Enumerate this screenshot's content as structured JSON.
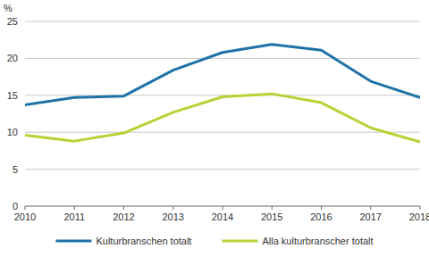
{
  "chart_data": {
    "type": "line",
    "y_label": "%",
    "x": [
      2010,
      2011,
      2012,
      2013,
      2014,
      2015,
      2016,
      2017,
      2018
    ],
    "xlim": [
      2010,
      2018
    ],
    "xticks": [
      2010,
      2011,
      2012,
      2013,
      2014,
      2015,
      2016,
      2017,
      2018
    ],
    "ylim": [
      0,
      25
    ],
    "yticks": [
      0,
      5,
      10,
      15,
      20,
      25
    ],
    "grid": true,
    "legend": "bottom",
    "series": [
      {
        "name": "Kulturbranschen totalt",
        "color": "#1f72a8",
        "values": [
          13.7,
          14.7,
          14.9,
          18.4,
          20.8,
          21.9,
          21.1,
          16.9,
          14.7
        ]
      },
      {
        "name": "Alla kulturbranscher totalt",
        "color": "#b5d334",
        "values": [
          9.6,
          8.8,
          9.9,
          12.7,
          14.8,
          15.2,
          14.0,
          10.6,
          8.7
        ]
      }
    ]
  }
}
